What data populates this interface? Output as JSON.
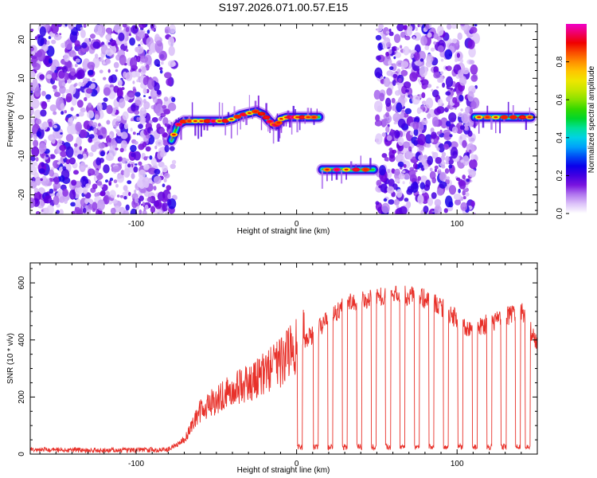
{
  "title": "S197.2026.071.00.57.E15",
  "colors": {
    "snr_line": "#e8312a",
    "axis": "#000000",
    "background": "#ffffff"
  },
  "chart_data": [
    {
      "type": "heatmap",
      "title": "S197.2026.071.00.57.E15",
      "xlabel": "Height of straight line (km)",
      "ylabel": "Frequency (Hz)",
      "xlim": [
        -166,
        150
      ],
      "ylim": [
        -25,
        24
      ],
      "xticks": [
        -100,
        0,
        100
      ],
      "yticks": [
        -20,
        -10,
        0,
        10,
        20
      ],
      "colorbar": {
        "label": "Normalized spectral amplitude",
        "range": [
          0,
          1
        ],
        "ticks": [
          "0.0",
          "0.2",
          "0.4",
          "0.6",
          "0.8"
        ],
        "colormap": "rainbow (violet-blue-cyan-green-yellow-red-magenta)"
      },
      "noise_regions_km": [
        [
          -166,
          -76
        ],
        [
          50,
          112
        ]
      ],
      "signal_tracks": [
        {
          "x": [
            -78,
            -74,
            -70,
            -65,
            -60,
            -55,
            -50,
            -45,
            -40,
            -35,
            -30,
            -25,
            -20,
            -17,
            -14,
            -12,
            -10,
            -6,
            -3,
            0,
            4,
            9,
            14
          ],
          "freq_hz": [
            -6,
            -2,
            -1,
            -1,
            -1,
            -1,
            -1,
            -1,
            -0.5,
            0.5,
            1,
            1.5,
            0.5,
            -1,
            -2,
            -2,
            -0.5,
            0,
            0,
            0,
            0,
            0,
            0
          ]
        },
        {
          "x": [
            16,
            24,
            32,
            40,
            48
          ],
          "freq_hz": [
            -13.5,
            -13.5,
            -13.5,
            -13.5,
            -13.5
          ]
        },
        {
          "x": [
            111,
            118,
            125,
            132,
            140,
            146
          ],
          "freq_hz": [
            0,
            0,
            0,
            0,
            0,
            0
          ]
        }
      ]
    },
    {
      "type": "line",
      "title": "",
      "xlabel": "Height of straight line (km)",
      "ylabel": "SNR (10 * v/v)",
      "xlim": [
        -166,
        150
      ],
      "ylim": [
        0,
        670
      ],
      "xticks": [
        -100,
        0,
        100
      ],
      "yticks": [
        0,
        200,
        400,
        600
      ],
      "series": [
        {
          "name": "SNR",
          "envelope_x": [
            -166,
            -130,
            -100,
            -80,
            -70,
            -60,
            -50,
            -40,
            -30,
            -20,
            -10,
            -5,
            0,
            10,
            20,
            30,
            40,
            50,
            60,
            70,
            80,
            90,
            100,
            110,
            120,
            130,
            140,
            150
          ],
          "envelope_y": [
            15,
            14,
            14,
            16,
            50,
            150,
            190,
            230,
            250,
            280,
            320,
            350,
            380,
            420,
            470,
            530,
            540,
            550,
            560,
            555,
            545,
            520,
            470,
            430,
            460,
            480,
            500,
            380
          ]
        },
        {
          "name": "dropouts_km",
          "x": [
            2,
            12,
            21,
            30,
            39,
            48,
            57,
            66,
            75,
            84,
            93,
            102,
            111,
            120,
            129,
            138,
            144
          ]
        }
      ]
    }
  ]
}
